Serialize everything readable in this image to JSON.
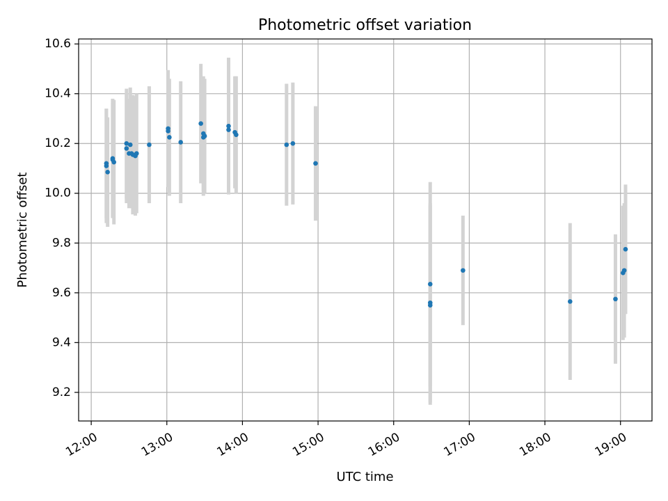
{
  "chart_data": {
    "type": "scatter",
    "title": "Photometric offset variation",
    "xlabel": "UTC time",
    "ylabel": "Photometric offset",
    "x_unit": "UTC time of day (HH:MM)",
    "xlim": [
      "11:50",
      "19:25"
    ],
    "ylim": [
      9.085,
      10.62
    ],
    "x_ticks": [
      "12:00",
      "13:00",
      "14:00",
      "15:00",
      "16:00",
      "17:00",
      "18:00",
      "19:00"
    ],
    "y_ticks": [
      9.2,
      9.4,
      9.6,
      9.8,
      10.0,
      10.2,
      10.4,
      10.6
    ],
    "y_tick_labels": [
      "9.2",
      "9.4",
      "9.6",
      "9.8",
      "10.0",
      "10.2",
      "10.4",
      "10.6"
    ],
    "grid": true,
    "point_color": "#1f77b4",
    "errorbar_color": "#d3d3d3",
    "points": [
      {
        "x": "12:12",
        "y": 10.11,
        "err": 0.23
      },
      {
        "x": "12:12",
        "y": 10.12,
        "err": 0.22
      },
      {
        "x": "12:13",
        "y": 10.085,
        "err": 0.22
      },
      {
        "x": "12:17",
        "y": 10.14,
        "err": 0.24
      },
      {
        "x": "12:17",
        "y": 10.135,
        "err": 0.23
      },
      {
        "x": "12:18",
        "y": 10.125,
        "err": 0.25
      },
      {
        "x": "12:28",
        "y": 10.2,
        "err": 0.22
      },
      {
        "x": "12:28",
        "y": 10.18,
        "err": 0.22
      },
      {
        "x": "12:30",
        "y": 10.16,
        "err": 0.22
      },
      {
        "x": "12:31",
        "y": 10.195,
        "err": 0.23
      },
      {
        "x": "12:32",
        "y": 10.16,
        "err": 0.22
      },
      {
        "x": "12:33",
        "y": 10.155,
        "err": 0.24
      },
      {
        "x": "12:35",
        "y": 10.15,
        "err": 0.24
      },
      {
        "x": "12:36",
        "y": 10.16,
        "err": 0.24
      },
      {
        "x": "12:46",
        "y": 10.195,
        "err": 0.235
      },
      {
        "x": "13:01",
        "y": 10.26,
        "err": 0.235
      },
      {
        "x": "13:01",
        "y": 10.25,
        "err": 0.21
      },
      {
        "x": "13:02",
        "y": 10.225,
        "err": 0.235
      },
      {
        "x": "13:11",
        "y": 10.205,
        "err": 0.245
      },
      {
        "x": "13:27",
        "y": 10.28,
        "err": 0.24
      },
      {
        "x": "13:29",
        "y": 10.24,
        "err": 0.23
      },
      {
        "x": "13:29",
        "y": 10.225,
        "err": 0.235
      },
      {
        "x": "13:30",
        "y": 10.23,
        "err": 0.23
      },
      {
        "x": "13:49",
        "y": 10.27,
        "err": 0.275
      },
      {
        "x": "13:49",
        "y": 10.255,
        "err": 0.245
      },
      {
        "x": "13:54",
        "y": 10.245,
        "err": 0.225
      },
      {
        "x": "13:55",
        "y": 10.235,
        "err": 0.235
      },
      {
        "x": "14:35",
        "y": 10.195,
        "err": 0.245
      },
      {
        "x": "14:40",
        "y": 10.2,
        "err": 0.245
      },
      {
        "x": "14:58",
        "y": 10.12,
        "err": 0.23
      },
      {
        "x": "16:29",
        "y": 9.635,
        "err": 0.41
      },
      {
        "x": "16:29",
        "y": 9.56,
        "err": 0.4
      },
      {
        "x": "16:29",
        "y": 9.55,
        "err": 0.4
      },
      {
        "x": "16:55",
        "y": 9.69,
        "err": 0.22
      },
      {
        "x": "18:20",
        "y": 9.565,
        "err": 0.315
      },
      {
        "x": "18:56",
        "y": 9.575,
        "err": 0.26
      },
      {
        "x": "19:02",
        "y": 9.68,
        "err": 0.27
      },
      {
        "x": "19:03",
        "y": 9.69,
        "err": 0.27
      },
      {
        "x": "19:04",
        "y": 9.775,
        "err": 0.26
      }
    ]
  }
}
